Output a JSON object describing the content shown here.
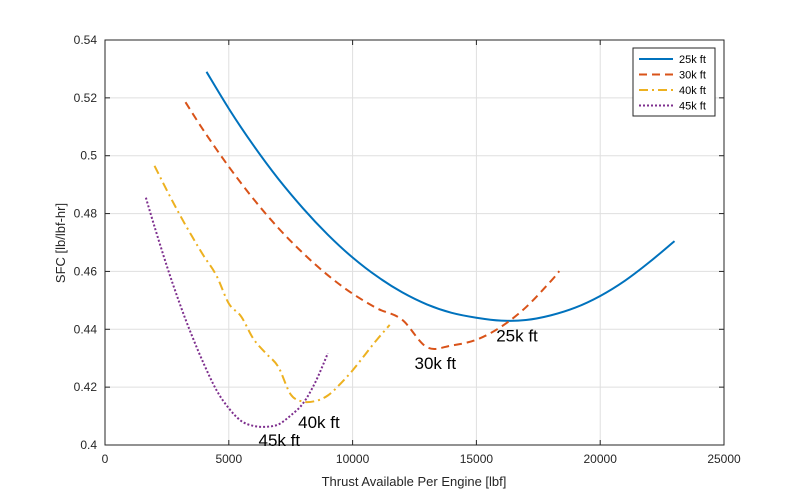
{
  "chart_data": {
    "type": "line",
    "title": "",
    "xlabel": "Thrust Available Per Engine [lbf]",
    "ylabel": "SFC [lb/lbf-hr]",
    "xlim": [
      0,
      25000
    ],
    "ylim": [
      0.4,
      0.54
    ],
    "xticks": [
      0,
      5000,
      10000,
      15000,
      20000,
      25000
    ],
    "xtick_labels": [
      "0",
      "5000",
      "10000",
      "15000",
      "20000",
      "25000"
    ],
    "yticks": [
      0.4,
      0.42,
      0.44,
      0.46,
      0.48,
      0.5,
      0.52,
      0.54
    ],
    "ytick_labels": [
      "0.4",
      "0.42",
      "0.44",
      "0.46",
      "0.48",
      "0.5",
      "0.52",
      "0.54"
    ],
    "grid": true,
    "legend_position": "top-right",
    "series": [
      {
        "name": "25k ft",
        "color": "#0072BD",
        "dash": "solid",
        "x": [
          4100,
          5000,
          6000,
          7000,
          8000,
          9000,
          10000,
          11000,
          12000,
          13000,
          14000,
          15000,
          16000,
          17000,
          18000,
          19000,
          20000,
          21000,
          22000,
          23000
        ],
        "y": [
          0.529,
          0.5163,
          0.5035,
          0.492,
          0.4818,
          0.4727,
          0.4648,
          0.4582,
          0.4528,
          0.4486,
          0.4457,
          0.444,
          0.443,
          0.4432,
          0.4448,
          0.4475,
          0.4515,
          0.4568,
          0.4633,
          0.4705
        ]
      },
      {
        "name": "30k ft",
        "color": "#D95319",
        "dash": "dashed",
        "x": [
          3250,
          4000,
          5000,
          6000,
          7000,
          8000,
          9000,
          10000,
          11000,
          12000,
          13000,
          14000,
          15000,
          16000,
          17000,
          18000,
          18350
        ],
        "y": [
          0.5185,
          0.5085,
          0.4962,
          0.485,
          0.475,
          0.4663,
          0.4587,
          0.4523,
          0.4472,
          0.4433,
          0.4338,
          0.4344,
          0.4364,
          0.4409,
          0.4476,
          0.4566,
          0.4601
        ]
      },
      {
        "name": "40k ft",
        "color": "#EDB120",
        "dash": "dashdot",
        "x": [
          2000,
          2500,
          3000,
          3500,
          4000,
          4500,
          5000,
          5500,
          6000,
          6500,
          7000,
          7500,
          8000,
          8500,
          9000,
          9500,
          10000,
          10500,
          11000,
          11500
        ],
        "y": [
          0.4965,
          0.488,
          0.4799,
          0.4723,
          0.4652,
          0.4586,
          0.4489,
          0.4444,
          0.4366,
          0.4317,
          0.427,
          0.4175,
          0.415,
          0.4152,
          0.4171,
          0.4211,
          0.4258,
          0.4312,
          0.4366,
          0.4415
        ]
      },
      {
        "name": "45k ft",
        "color": "#7E2F8E",
        "dash": "dotted",
        "x": [
          1650,
          2000,
          2500,
          3000,
          3500,
          4000,
          4500,
          5000,
          5500,
          6000,
          6500,
          7000,
          7500,
          8000,
          8500,
          9000
        ],
        "y": [
          0.4855,
          0.4755,
          0.4618,
          0.4493,
          0.438,
          0.4279,
          0.419,
          0.4127,
          0.4083,
          0.4066,
          0.4063,
          0.4071,
          0.4102,
          0.4144,
          0.4218,
          0.4317
        ]
      }
    ],
    "annotations": [
      {
        "text": "25k ft",
        "x": 15800,
        "y": 0.4358
      },
      {
        "text": "30k ft",
        "x": 12500,
        "y": 0.4263
      },
      {
        "text": "40k ft",
        "x": 7800,
        "y": 0.4058
      },
      {
        "text": "45k ft",
        "x": 6200,
        "y": 0.3997
      }
    ]
  }
}
